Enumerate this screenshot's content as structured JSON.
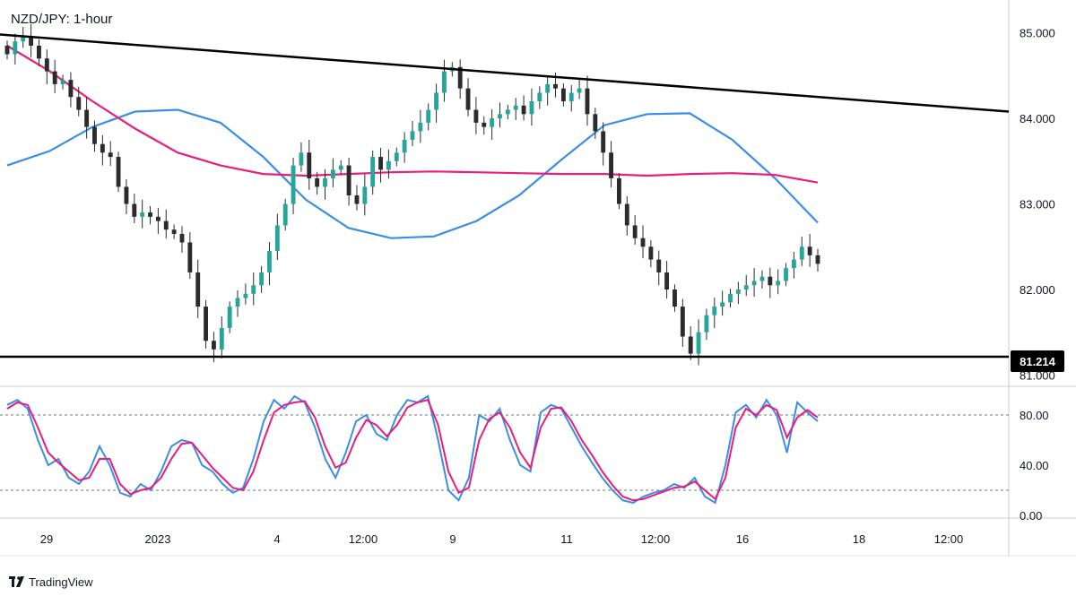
{
  "chart_data": {
    "type": "candlestick",
    "title": "NZD/JPY: 1-hour",
    "brand": "TradingView",
    "price_axis": {
      "range": [
        80.9,
        85.3
      ],
      "ticks": [
        "85.000",
        "84.000",
        "83.000",
        "82.000",
        "81.000"
      ]
    },
    "price_label": {
      "value": "81.214",
      "bg": "#000000",
      "fg": "#ffffff"
    },
    "time_axis": {
      "ticks": [
        "29",
        "2023",
        "4",
        "12:00",
        "9",
        "11",
        "12:00",
        "16",
        "18",
        "12:00"
      ]
    },
    "trendlines": [
      {
        "name": "descending-resistance",
        "from": [
          0,
          84.98
        ],
        "to": [
          1.0,
          84.08
        ],
        "color": "#000000"
      },
      {
        "name": "horizontal-support",
        "from": [
          0,
          81.214
        ],
        "to": [
          1.0,
          81.214
        ],
        "color": "#000000"
      }
    ],
    "ma_blue": {
      "color": "#3a8ee6",
      "values": [
        83.45,
        83.62,
        83.9,
        84.08,
        84.1,
        83.95,
        83.55,
        83.05,
        82.72,
        82.6,
        82.62,
        82.8,
        83.1,
        83.52,
        83.92,
        84.05,
        84.06,
        83.75,
        83.3,
        82.78
      ]
    },
    "ma_pink": {
      "color": "#e91e7a",
      "values": [
        84.85,
        84.55,
        84.2,
        83.88,
        83.6,
        83.45,
        83.35,
        83.33,
        83.35,
        83.37,
        83.38,
        83.37,
        83.36,
        83.35,
        83.35,
        83.33,
        83.35,
        83.36,
        83.34,
        83.25
      ]
    },
    "candles": {
      "up_color": "#26a69a",
      "down_color": "#2b2b2b",
      "closes": [
        84.75,
        84.9,
        84.95,
        84.85,
        84.7,
        84.55,
        84.4,
        84.45,
        84.25,
        84.1,
        83.9,
        83.7,
        83.6,
        83.55,
        83.2,
        83.0,
        82.85,
        82.9,
        82.85,
        82.8,
        82.7,
        82.65,
        82.55,
        82.2,
        81.8,
        81.4,
        81.3,
        81.55,
        81.8,
        81.9,
        81.95,
        82.05,
        82.2,
        82.45,
        82.75,
        83.0,
        83.45,
        83.6,
        83.3,
        83.2,
        83.3,
        83.4,
        83.45,
        83.1,
        83.0,
        83.2,
        83.55,
        83.4,
        83.5,
        83.6,
        83.75,
        83.85,
        83.95,
        84.1,
        84.3,
        84.55,
        84.6,
        84.35,
        84.1,
        83.95,
        83.9,
        84.0,
        84.05,
        84.1,
        84.15,
        84.05,
        84.2,
        84.3,
        84.4,
        84.35,
        84.2,
        84.3,
        84.35,
        84.05,
        83.85,
        83.6,
        83.3,
        83.0,
        82.75,
        82.6,
        82.5,
        82.35,
        82.2,
        82.0,
        81.8,
        81.45,
        81.25,
        81.5,
        81.7,
        81.8,
        81.85,
        81.95,
        82.0,
        82.05,
        82.1,
        82.15,
        82.05,
        82.1,
        82.25,
        82.35,
        82.5,
        82.4,
        82.3
      ]
    },
    "stochastic": {
      "range": [
        0,
        100
      ],
      "levels": [
        80,
        20
      ],
      "ticks": [
        "80.00",
        "40.00",
        "0.00"
      ],
      "k_color": "#3a8ee6",
      "d_color": "#e91e7a",
      "k": [
        88,
        92,
        85,
        60,
        40,
        45,
        30,
        25,
        35,
        55,
        40,
        18,
        15,
        25,
        20,
        35,
        55,
        60,
        58,
        40,
        35,
        25,
        18,
        22,
        45,
        75,
        92,
        85,
        95,
        90,
        70,
        45,
        30,
        50,
        75,
        80,
        65,
        60,
        80,
        92,
        90,
        95,
        60,
        20,
        12,
        30,
        80,
        75,
        85,
        60,
        40,
        35,
        82,
        88,
        85,
        70,
        55,
        42,
        30,
        20,
        12,
        10,
        15,
        18,
        20,
        25,
        22,
        30,
        15,
        10,
        40,
        82,
        88,
        78,
        92,
        80,
        50,
        90,
        82,
        75
      ],
      "d": [
        85,
        90,
        88,
        70,
        50,
        42,
        35,
        28,
        30,
        45,
        45,
        25,
        17,
        20,
        22,
        30,
        45,
        57,
        58,
        48,
        38,
        30,
        22,
        20,
        35,
        60,
        82,
        88,
        90,
        91,
        78,
        55,
        38,
        42,
        62,
        76,
        72,
        63,
        72,
        86,
        90,
        92,
        72,
        35,
        18,
        22,
        60,
        77,
        82,
        70,
        50,
        38,
        70,
        85,
        86,
        75,
        60,
        48,
        35,
        24,
        15,
        12,
        13,
        16,
        19,
        22,
        23,
        27,
        20,
        13,
        30,
        70,
        85,
        80,
        88,
        84,
        62,
        78,
        84,
        78
      ]
    }
  }
}
